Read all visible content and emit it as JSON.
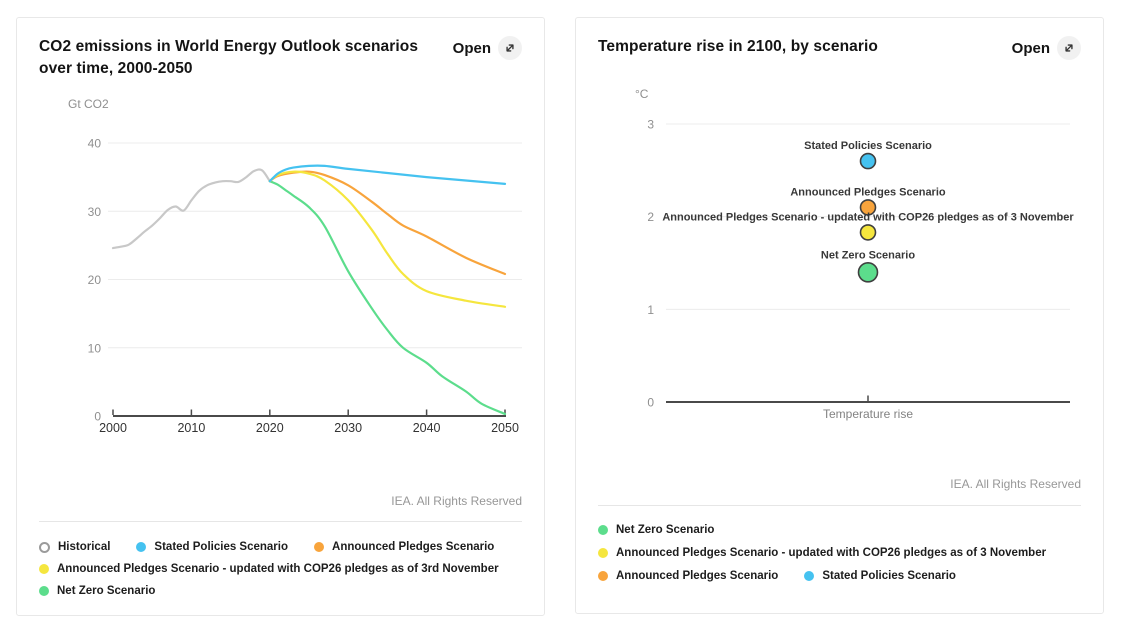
{
  "panels": {
    "left": {
      "title": "CO2 emissions in World Energy Outlook scenarios over time, 2000-2050",
      "open_label": "Open",
      "open_icon": "expand-diagonal-arrow",
      "unit_label": "Gt CO2",
      "footer": "IEA. All Rights Reserved",
      "legend_rows": [
        [
          {
            "label": "Historical",
            "color": "#c8c8c8",
            "hollow": true
          },
          {
            "label": "Stated Policies Scenario",
            "color": "#45c2f0"
          },
          {
            "label": "Announced Pledges Scenario",
            "color": "#f8a43c"
          }
        ],
        [
          {
            "label": "Announced Pledges Scenario - updated with COP26 pledges as of 3rd November",
            "color": "#f5e63e"
          }
        ],
        [
          {
            "label": "Net Zero Scenario",
            "color": "#5cdd8c"
          }
        ]
      ]
    },
    "right": {
      "title": "Temperature rise in 2100, by scenario",
      "open_label": "Open",
      "open_icon": "expand-diagonal-arrow",
      "unit_label": "°C",
      "xlabel": "Temperature rise",
      "footer": "IEA. All Rights Reserved",
      "legend_rows": [
        [
          {
            "label": "Net Zero Scenario",
            "color": "#5cdd8c"
          }
        ],
        [
          {
            "label": "Announced Pledges Scenario - updated with COP26 pledges as of 3 November",
            "color": "#f5e63e"
          }
        ],
        [
          {
            "label": "Announced Pledges Scenario",
            "color": "#f8a43c"
          },
          {
            "label": "Stated Policies Scenario",
            "color": "#45c2f0"
          }
        ]
      ]
    }
  },
  "chart_data": [
    {
      "type": "line",
      "title": "CO2 emissions in World Energy Outlook scenarios over time, 2000-2050",
      "ylabel": "Gt CO2",
      "xlabel": "",
      "xlim": [
        2000,
        2050
      ],
      "ylim": [
        0,
        40
      ],
      "yticks": [
        0,
        10,
        20,
        30,
        40
      ],
      "xticks": [
        2000,
        2010,
        2020,
        2030,
        2040,
        2050
      ],
      "grid": true,
      "legend_position": "bottom",
      "series": [
        {
          "name": "Historical",
          "color": "#c8c8c8",
          "x": [
            2000,
            2001,
            2002,
            2003,
            2004,
            2005,
            2006,
            2007,
            2008,
            2009,
            2010,
            2011,
            2012,
            2013,
            2014,
            2015,
            2016,
            2017,
            2018,
            2019,
            2020
          ],
          "y": [
            24.6,
            24.8,
            25.1,
            26.0,
            27.0,
            27.9,
            29.0,
            30.2,
            30.7,
            30.1,
            31.6,
            33.0,
            33.8,
            34.2,
            34.4,
            34.4,
            34.3,
            35.0,
            35.9,
            36.0,
            34.4
          ]
        },
        {
          "name": "Net Zero Scenario",
          "color": "#5cdd8c",
          "x": [
            2020,
            2021,
            2022,
            2023,
            2025,
            2027,
            2030,
            2033,
            2035,
            2037,
            2040,
            2042,
            2045,
            2047,
            2050
          ],
          "y": [
            34.4,
            33.9,
            33.1,
            32.3,
            30.6,
            27.8,
            21.2,
            15.8,
            12.6,
            10.0,
            7.8,
            5.8,
            3.6,
            1.8,
            0.3
          ]
        },
        {
          "name": "Announced Pledges Scenario",
          "color": "#f8a43c",
          "x": [
            2020,
            2021,
            2023,
            2025,
            2027,
            2030,
            2033,
            2035,
            2037,
            2040,
            2045,
            2050
          ],
          "y": [
            34.4,
            35.15,
            35.65,
            35.8,
            35.3,
            33.8,
            31.4,
            29.6,
            27.9,
            26.3,
            23.2,
            20.8
          ]
        },
        {
          "name": "Announced Pledges Scenario - updated with COP26 pledges as of 3rd November",
          "color": "#f5e63e",
          "x": [
            2020,
            2021,
            2023,
            2025,
            2027,
            2030,
            2033,
            2035,
            2037,
            2040,
            2045,
            2050
          ],
          "y": [
            34.4,
            35.3,
            35.8,
            35.5,
            34.5,
            31.6,
            27.3,
            23.8,
            20.8,
            18.3,
            16.9,
            16.0
          ]
        },
        {
          "name": "Stated Policies Scenario",
          "color": "#45c2f0",
          "x": [
            2020,
            2021,
            2022,
            2023,
            2025,
            2027,
            2030,
            2035,
            2040,
            2045,
            2050
          ],
          "y": [
            34.4,
            35.5,
            36.1,
            36.4,
            36.65,
            36.65,
            36.2,
            35.6,
            35.0,
            34.5,
            34.0
          ]
        }
      ]
    },
    {
      "type": "scatter",
      "title": "Temperature rise in 2100, by scenario",
      "ylabel": "°C",
      "xlabel": "Temperature rise",
      "ylim": [
        0,
        3.3
      ],
      "yticks": [
        0,
        1,
        2,
        3
      ],
      "grid": true,
      "legend_position": "bottom",
      "points": [
        {
          "label": "Stated Policies Scenario",
          "value": 2.6,
          "color": "#45c2f0"
        },
        {
          "label": "Announced Pledges Scenario",
          "value": 2.1,
          "color": "#f8a43c"
        },
        {
          "label": "Announced Pledges Scenario - updated with COP26 pledges as of 3 November",
          "value": 1.83,
          "color": "#f5e63e"
        },
        {
          "label": "Net Zero Scenario",
          "value": 1.4,
          "color": "#5cdd8c"
        }
      ]
    }
  ]
}
